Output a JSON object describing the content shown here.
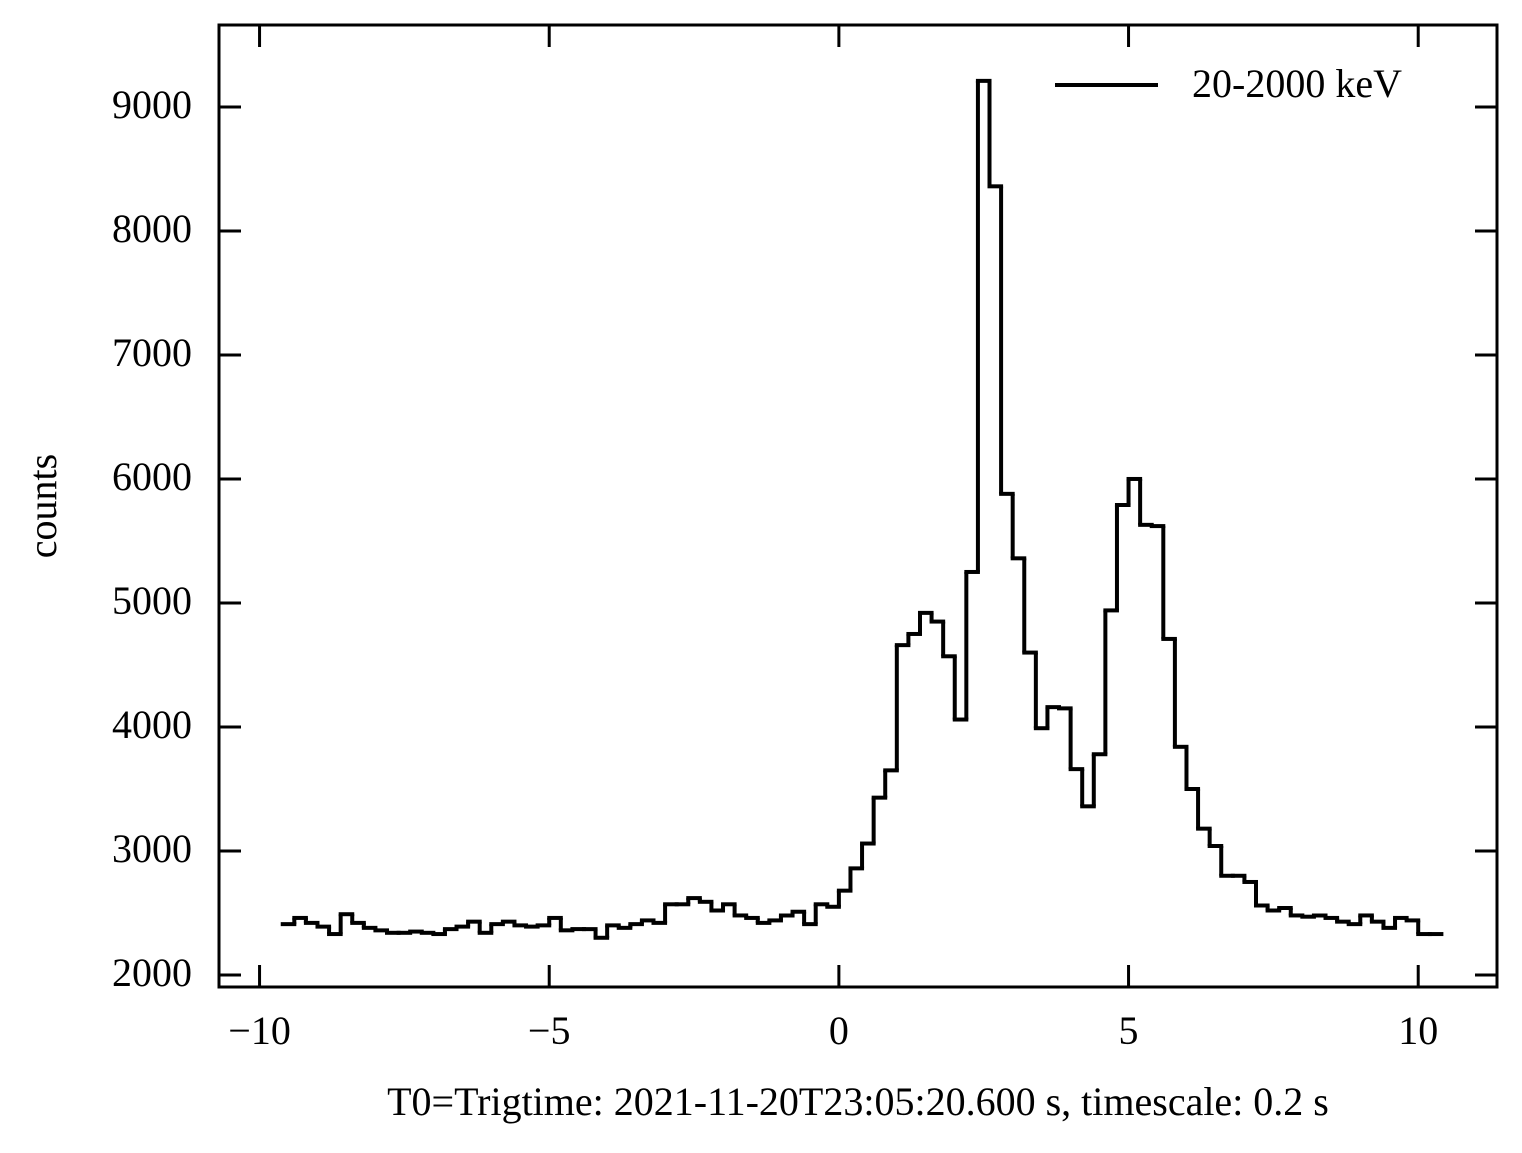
{
  "chart_data": {
    "type": "histogram",
    "xlabel": "T0=Trigtime: 2021-11-20T23:05:20.600 s, timescale: 0.2 s",
    "ylabel": "counts",
    "bins": [
      -9.6,
      -9.4,
      -9.2,
      -9.0,
      -8.8,
      -8.6,
      -8.4,
      -8.2,
      -8.0,
      -7.8,
      -7.6,
      -7.4,
      -7.2,
      -7.0,
      -6.8,
      -6.6,
      -6.4,
      -6.2,
      -6.0,
      -5.8,
      -5.6,
      -5.4,
      -5.2,
      -5.0,
      -4.8,
      -4.6,
      -4.4,
      -4.2,
      -4.0,
      -3.8,
      -3.6,
      -3.4,
      -3.2,
      -3.0,
      -2.8,
      -2.6,
      -2.4,
      -2.2,
      -2.0,
      -1.8,
      -1.6,
      -1.4,
      -1.2,
      -1.0,
      -0.8,
      -0.6,
      -0.4,
      -0.2,
      0.0,
      0.2,
      0.4,
      0.6,
      0.8,
      1.0,
      1.2,
      1.4,
      1.6,
      1.8,
      2.0,
      2.2,
      2.4,
      2.6,
      2.8,
      3.0,
      3.2,
      3.4,
      3.6,
      3.8,
      4.0,
      4.2,
      4.4,
      4.6,
      4.8,
      5.0,
      5.2,
      5.4,
      5.6,
      5.8,
      6.0,
      6.2,
      6.4,
      6.6,
      6.8,
      7.0,
      7.2,
      7.4,
      7.6,
      7.8,
      8.0,
      8.2,
      8.4,
      8.6,
      8.8,
      9.0,
      9.2,
      9.4,
      9.6,
      9.8,
      10.0,
      10.2,
      10.4
    ],
    "series": [
      {
        "name": "20-2000 keV",
        "color": "#000000",
        "values": [
          2410,
          2460,
          2420,
          2390,
          2330,
          2490,
          2420,
          2380,
          2360,
          2340,
          2340,
          2350,
          2340,
          2330,
          2370,
          2390,
          2430,
          2340,
          2410,
          2430,
          2400,
          2390,
          2400,
          2460,
          2360,
          2370,
          2370,
          2300,
          2400,
          2380,
          2410,
          2440,
          2420,
          2570,
          2570,
          2620,
          2590,
          2520,
          2570,
          2480,
          2460,
          2420,
          2440,
          2480,
          2510,
          2410,
          2570,
          2550,
          2680,
          2860,
          3060,
          3430,
          3650,
          4660,
          4750,
          4920,
          4850,
          4570,
          4060,
          5250,
          9210,
          8360,
          5880,
          5360,
          4600,
          3990,
          4160,
          4150,
          3660,
          3360,
          3780,
          4940,
          5790,
          6000,
          5630,
          5620,
          4710,
          3840,
          3500,
          3180,
          3040,
          2800,
          2800,
          2750,
          2560,
          2520,
          2540,
          2480,
          2470,
          2480,
          2460,
          2430,
          2410,
          2480,
          2430,
          2380,
          2460,
          2440,
          2330,
          2330
        ]
      }
    ],
    "xlim": [
      -10.7,
      11.36
    ],
    "ylim": [
      1903,
      9661
    ],
    "xticks": [
      {
        "value": -10,
        "label": "−10"
      },
      {
        "value": -5,
        "label": "−5"
      },
      0,
      5,
      10
    ],
    "yticks": [
      2000,
      3000,
      4000,
      5000,
      6000,
      7000,
      8000,
      9000
    ],
    "legend": "upper right"
  }
}
